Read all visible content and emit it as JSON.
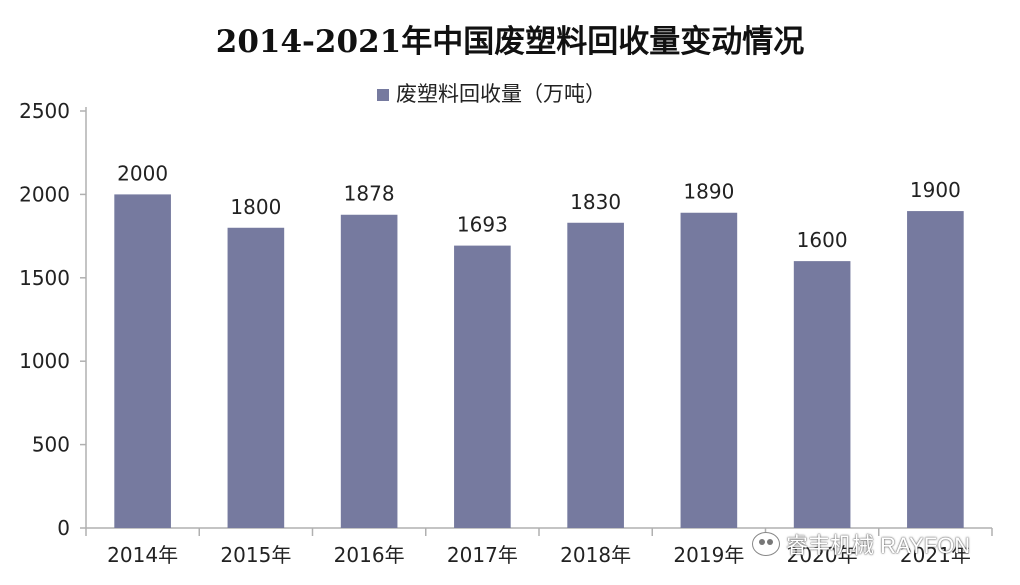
{
  "chart_data": {
    "type": "bar",
    "title": "2014-2021年中国废塑料回收量变动情况",
    "legend": {
      "label": "废塑料回收量（万吨）",
      "position": "top-center"
    },
    "categories": [
      "2014年",
      "2015年",
      "2016年",
      "2017年",
      "2018年",
      "2019年",
      "2020年",
      "2021年"
    ],
    "series": [
      {
        "name": "废塑料回收量（万吨）",
        "values": [
          2000,
          1800,
          1878,
          1693,
          1830,
          1890,
          1600,
          1900
        ]
      }
    ],
    "data_labels": [
      "2000",
      "1800",
      "1878",
      "1693",
      "1830",
      "1890",
      "1600",
      "1900"
    ],
    "y_ticks": [
      "0",
      "500",
      "1000",
      "1500",
      "2000",
      "2500"
    ],
    "ylim": [
      0,
      2500
    ],
    "grid": false,
    "colors": {
      "bar": "#767a9f",
      "axis": "#b0b0b0",
      "text": "#222222"
    }
  },
  "watermark": {
    "text": "睿丰机械 RAYFON",
    "icon": "wechat-icon"
  }
}
